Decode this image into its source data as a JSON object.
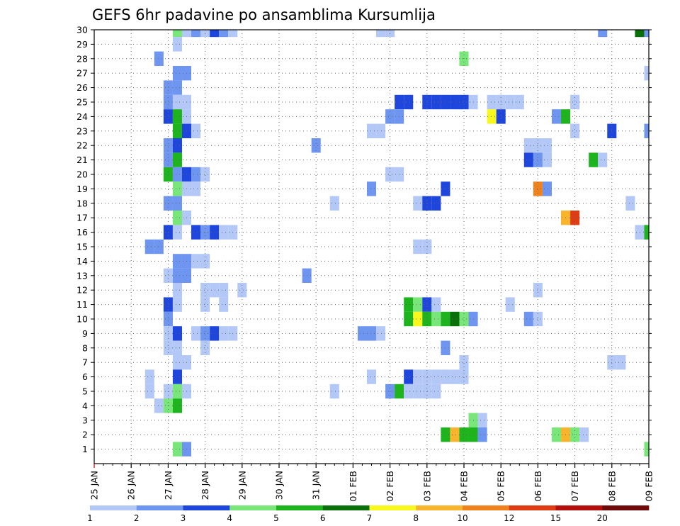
{
  "chart_data": {
    "type": "heatmap",
    "title": "GEFS 6hr padavine po ansamblima Kursumlija",
    "y_ticks": [
      "1",
      "2",
      "3",
      "4",
      "5",
      "6",
      "7",
      "8",
      "9",
      "10",
      "11",
      "12",
      "13",
      "14",
      "15",
      "16",
      "17",
      "18",
      "19",
      "20",
      "21",
      "22",
      "23",
      "24",
      "25",
      "26",
      "27",
      "28",
      "29",
      "30"
    ],
    "x_ticks": [
      "25 JAN",
      "26 JAN",
      "27 JAN",
      "28 JAN",
      "29 JAN",
      "30 JAN",
      "31 JAN",
      "01 FEB",
      "02 FEB",
      "03 FEB",
      "04 FEB",
      "05 FEB",
      "06 FEB",
      "07 FEB",
      "08 FEB",
      "09 FEB"
    ],
    "x_range": [
      "2023-01-25 00Z",
      "2023-02-09 00Z"
    ],
    "time_step_hours": 6,
    "y_range": [
      0,
      30
    ],
    "grid": "dotted",
    "colorbar": {
      "labels": [
        "1",
        "2",
        "3",
        "4",
        "5",
        "6",
        "7",
        "8",
        "10",
        "12",
        "15",
        "20"
      ],
      "colors": [
        "#b4c8f8",
        "#6e96f0",
        "#1e46dc",
        "#78e678",
        "#1eb41e",
        "#0a700a",
        "#f8f81e",
        "#f8b42d",
        "#f0821e",
        "#e03c14",
        "#b40f0f",
        "#6e0a0a"
      ]
    },
    "cells": [
      {
        "m": 30,
        "t": "01-27 06Z",
        "c": 4
      },
      {
        "m": 30,
        "t": "01-27 12Z",
        "c": 1
      },
      {
        "m": 30,
        "t": "01-27 18Z",
        "c": 2
      },
      {
        "m": 30,
        "t": "01-28 00Z",
        "c": 1
      },
      {
        "m": 30,
        "t": "01-28 06Z",
        "c": 3
      },
      {
        "m": 30,
        "t": "01-28 12Z",
        "c": 2
      },
      {
        "m": 30,
        "t": "01-28 18Z",
        "c": 1
      },
      {
        "m": 30,
        "t": "02-01 18Z",
        "c": 1
      },
      {
        "m": 30,
        "t": "02-02 00Z",
        "c": 1
      },
      {
        "m": 30,
        "t": "02-07 18Z",
        "c": 2
      },
      {
        "m": 30,
        "t": "02-08 18Z",
        "c": 6
      },
      {
        "m": 30,
        "t": "02-09 00Z",
        "c": 2
      },
      {
        "m": 29,
        "t": "01-27 06Z",
        "c": 1
      },
      {
        "m": 28,
        "t": "01-26 18Z",
        "c": 2
      },
      {
        "m": 28,
        "t": "02-04 00Z",
        "c": 4
      },
      {
        "m": 27,
        "t": "01-27 06Z",
        "c": 2
      },
      {
        "m": 27,
        "t": "01-27 12Z",
        "c": 2
      },
      {
        "m": 27,
        "t": "02-09 00Z",
        "c": 1
      },
      {
        "m": 26,
        "t": "01-27 00Z",
        "c": 2
      },
      {
        "m": 26,
        "t": "01-27 06Z",
        "c": 2
      },
      {
        "m": 25,
        "t": "01-27 00Z",
        "c": 2
      },
      {
        "m": 25,
        "t": "01-27 06Z",
        "c": 1
      },
      {
        "m": 25,
        "t": "01-27 12Z",
        "c": 1
      },
      {
        "m": 25,
        "t": "02-02 06Z",
        "c": 3
      },
      {
        "m": 25,
        "t": "02-02 12Z",
        "c": 3
      },
      {
        "m": 25,
        "t": "02-03 00Z",
        "c": 3
      },
      {
        "m": 25,
        "t": "02-03 06Z",
        "c": 3
      },
      {
        "m": 25,
        "t": "02-03 12Z",
        "c": 3
      },
      {
        "m": 25,
        "t": "02-03 18Z",
        "c": 3
      },
      {
        "m": 25,
        "t": "02-04 00Z",
        "c": 3
      },
      {
        "m": 25,
        "t": "02-04 06Z",
        "c": 1
      },
      {
        "m": 25,
        "t": "02-04 18Z",
        "c": 1
      },
      {
        "m": 25,
        "t": "02-05 00Z",
        "c": 1
      },
      {
        "m": 25,
        "t": "02-05 06Z",
        "c": 1
      },
      {
        "m": 25,
        "t": "02-05 12Z",
        "c": 1
      },
      {
        "m": 25,
        "t": "02-07 00Z",
        "c": 1
      },
      {
        "m": 24,
        "t": "01-27 00Z",
        "c": 3
      },
      {
        "m": 24,
        "t": "01-27 06Z",
        "c": 5
      },
      {
        "m": 24,
        "t": "01-27 12Z",
        "c": 1
      },
      {
        "m": 24,
        "t": "02-02 00Z",
        "c": 2
      },
      {
        "m": 24,
        "t": "02-02 06Z",
        "c": 2
      },
      {
        "m": 24,
        "t": "02-04 18Z",
        "c": 7
      },
      {
        "m": 24,
        "t": "02-05 00Z",
        "c": 3
      },
      {
        "m": 24,
        "t": "02-06 12Z",
        "c": 2
      },
      {
        "m": 24,
        "t": "02-06 18Z",
        "c": 5
      },
      {
        "m": 23,
        "t": "01-27 06Z",
        "c": 5
      },
      {
        "m": 23,
        "t": "01-27 12Z",
        "c": 3
      },
      {
        "m": 23,
        "t": "01-27 18Z",
        "c": 1
      },
      {
        "m": 23,
        "t": "02-01 12Z",
        "c": 1
      },
      {
        "m": 23,
        "t": "02-01 18Z",
        "c": 1
      },
      {
        "m": 23,
        "t": "02-07 00Z",
        "c": 1
      },
      {
        "m": 23,
        "t": "02-08 00Z",
        "c": 3
      },
      {
        "m": 23,
        "t": "02-09 00Z",
        "c": 2
      },
      {
        "m": 22,
        "t": "01-27 00Z",
        "c": 2
      },
      {
        "m": 22,
        "t": "01-27 06Z",
        "c": 3
      },
      {
        "m": 22,
        "t": "01-31 00Z",
        "c": 2
      },
      {
        "m": 22,
        "t": "02-05 18Z",
        "c": 1
      },
      {
        "m": 22,
        "t": "02-06 00Z",
        "c": 1
      },
      {
        "m": 22,
        "t": "02-06 06Z",
        "c": 1
      },
      {
        "m": 21,
        "t": "01-27 00Z",
        "c": 2
      },
      {
        "m": 21,
        "t": "01-27 06Z",
        "c": 5
      },
      {
        "m": 21,
        "t": "02-05 18Z",
        "c": 3
      },
      {
        "m": 21,
        "t": "02-06 00Z",
        "c": 2
      },
      {
        "m": 21,
        "t": "02-06 06Z",
        "c": 1
      },
      {
        "m": 21,
        "t": "02-07 12Z",
        "c": 5
      },
      {
        "m": 21,
        "t": "02-07 18Z",
        "c": 1
      },
      {
        "m": 20,
        "t": "01-27 00Z",
        "c": 5
      },
      {
        "m": 20,
        "t": "01-27 06Z",
        "c": 2
      },
      {
        "m": 20,
        "t": "01-27 12Z",
        "c": 3
      },
      {
        "m": 20,
        "t": "01-27 18Z",
        "c": 2
      },
      {
        "m": 20,
        "t": "01-28 00Z",
        "c": 1
      },
      {
        "m": 20,
        "t": "02-02 00Z",
        "c": 1
      },
      {
        "m": 20,
        "t": "02-02 06Z",
        "c": 1
      },
      {
        "m": 19,
        "t": "01-27 06Z",
        "c": 4
      },
      {
        "m": 19,
        "t": "01-27 12Z",
        "c": 1
      },
      {
        "m": 19,
        "t": "01-27 18Z",
        "c": 1
      },
      {
        "m": 19,
        "t": "02-01 12Z",
        "c": 2
      },
      {
        "m": 19,
        "t": "02-03 12Z",
        "c": 3
      },
      {
        "m": 19,
        "t": "02-06 00Z",
        "c": 9
      },
      {
        "m": 19,
        "t": "02-06 06Z",
        "c": 2
      },
      {
        "m": 18,
        "t": "01-27 00Z",
        "c": 2
      },
      {
        "m": 18,
        "t": "01-27 06Z",
        "c": 2
      },
      {
        "m": 18,
        "t": "01-31 12Z",
        "c": 1
      },
      {
        "m": 18,
        "t": "02-02 18Z",
        "c": 1
      },
      {
        "m": 18,
        "t": "02-03 00Z",
        "c": 3
      },
      {
        "m": 18,
        "t": "02-03 06Z",
        "c": 3
      },
      {
        "m": 18,
        "t": "02-08 12Z",
        "c": 1
      },
      {
        "m": 17,
        "t": "01-27 06Z",
        "c": 4
      },
      {
        "m": 17,
        "t": "01-27 12Z",
        "c": 1
      },
      {
        "m": 17,
        "t": "02-06 18Z",
        "c": 8
      },
      {
        "m": 17,
        "t": "02-07 00Z",
        "c": 10
      },
      {
        "m": 16,
        "t": "01-27 00Z",
        "c": 3
      },
      {
        "m": 16,
        "t": "01-27 06Z",
        "c": 1
      },
      {
        "m": 16,
        "t": "01-27 18Z",
        "c": 3
      },
      {
        "m": 16,
        "t": "01-28 00Z",
        "c": 2
      },
      {
        "m": 16,
        "t": "01-28 06Z",
        "c": 3
      },
      {
        "m": 16,
        "t": "01-28 12Z",
        "c": 1
      },
      {
        "m": 16,
        "t": "01-28 18Z",
        "c": 1
      },
      {
        "m": 16,
        "t": "02-08 18Z",
        "c": 1
      },
      {
        "m": 16,
        "t": "02-09 00Z",
        "c": 5
      },
      {
        "m": 15,
        "t": "01-26 12Z",
        "c": 2
      },
      {
        "m": 15,
        "t": "01-26 18Z",
        "c": 2
      },
      {
        "m": 15,
        "t": "02-02 18Z",
        "c": 1
      },
      {
        "m": 15,
        "t": "02-03 00Z",
        "c": 1
      },
      {
        "m": 14,
        "t": "01-27 06Z",
        "c": 2
      },
      {
        "m": 14,
        "t": "01-27 12Z",
        "c": 2
      },
      {
        "m": 14,
        "t": "01-27 18Z",
        "c": 1
      },
      {
        "m": 14,
        "t": "01-28 00Z",
        "c": 1
      },
      {
        "m": 13,
        "t": "01-27 00Z",
        "c": 1
      },
      {
        "m": 13,
        "t": "01-27 06Z",
        "c": 2
      },
      {
        "m": 13,
        "t": "01-27 12Z",
        "c": 2
      },
      {
        "m": 13,
        "t": "01-30 18Z",
        "c": 2
      },
      {
        "m": 12,
        "t": "01-27 06Z",
        "c": 1
      },
      {
        "m": 12,
        "t": "01-28 00Z",
        "c": 1
      },
      {
        "m": 12,
        "t": "01-28 06Z",
        "c": 1
      },
      {
        "m": 12,
        "t": "01-28 12Z",
        "c": 1
      },
      {
        "m": 12,
        "t": "01-29 00Z",
        "c": 1
      },
      {
        "m": 12,
        "t": "02-06 00Z",
        "c": 1
      },
      {
        "m": 11,
        "t": "01-27 00Z",
        "c": 3
      },
      {
        "m": 11,
        "t": "01-27 06Z",
        "c": 1
      },
      {
        "m": 11,
        "t": "01-28 00Z",
        "c": 1
      },
      {
        "m": 11,
        "t": "01-28 12Z",
        "c": 1
      },
      {
        "m": 11,
        "t": "02-02 12Z",
        "c": 5
      },
      {
        "m": 11,
        "t": "02-02 18Z",
        "c": 4
      },
      {
        "m": 11,
        "t": "02-03 00Z",
        "c": 3
      },
      {
        "m": 11,
        "t": "02-03 06Z",
        "c": 1
      },
      {
        "m": 11,
        "t": "02-05 06Z",
        "c": 1
      },
      {
        "m": 10,
        "t": "01-27 00Z",
        "c": 2
      },
      {
        "m": 10,
        "t": "02-02 12Z",
        "c": 5
      },
      {
        "m": 10,
        "t": "02-02 18Z",
        "c": 7
      },
      {
        "m": 10,
        "t": "02-03 00Z",
        "c": 5
      },
      {
        "m": 10,
        "t": "02-03 06Z",
        "c": 4
      },
      {
        "m": 10,
        "t": "02-03 12Z",
        "c": 5
      },
      {
        "m": 10,
        "t": "02-03 18Z",
        "c": 6
      },
      {
        "m": 10,
        "t": "02-04 00Z",
        "c": 4
      },
      {
        "m": 10,
        "t": "02-04 06Z",
        "c": 2
      },
      {
        "m": 10,
        "t": "02-05 18Z",
        "c": 2
      },
      {
        "m": 10,
        "t": "02-06 00Z",
        "c": 1
      },
      {
        "m": 9,
        "t": "01-27 00Z",
        "c": 1
      },
      {
        "m": 9,
        "t": "01-27 06Z",
        "c": 3
      },
      {
        "m": 9,
        "t": "01-27 18Z",
        "c": 1
      },
      {
        "m": 9,
        "t": "01-28 00Z",
        "c": 2
      },
      {
        "m": 9,
        "t": "01-28 06Z",
        "c": 3
      },
      {
        "m": 9,
        "t": "01-28 12Z",
        "c": 1
      },
      {
        "m": 9,
        "t": "01-28 18Z",
        "c": 1
      },
      {
        "m": 9,
        "t": "02-01 06Z",
        "c": 2
      },
      {
        "m": 9,
        "t": "02-01 12Z",
        "c": 2
      },
      {
        "m": 9,
        "t": "02-01 18Z",
        "c": 1
      },
      {
        "m": 8,
        "t": "01-27 00Z",
        "c": 1
      },
      {
        "m": 8,
        "t": "01-27 06Z",
        "c": 1
      },
      {
        "m": 8,
        "t": "01-28 00Z",
        "c": 1
      },
      {
        "m": 8,
        "t": "02-03 12Z",
        "c": 2
      },
      {
        "m": 7,
        "t": "01-27 06Z",
        "c": 1
      },
      {
        "m": 7,
        "t": "01-27 12Z",
        "c": 1
      },
      {
        "m": 7,
        "t": "02-04 00Z",
        "c": 1
      },
      {
        "m": 7,
        "t": "02-08 00Z",
        "c": 1
      },
      {
        "m": 7,
        "t": "02-08 06Z",
        "c": 1
      },
      {
        "m": 6,
        "t": "01-26 12Z",
        "c": 1
      },
      {
        "m": 6,
        "t": "01-27 06Z",
        "c": 3
      },
      {
        "m": 6,
        "t": "02-01 12Z",
        "c": 1
      },
      {
        "m": 6,
        "t": "02-02 12Z",
        "c": 3
      },
      {
        "m": 6,
        "t": "02-02 18Z",
        "c": 1
      },
      {
        "m": 6,
        "t": "02-03 00Z",
        "c": 1
      },
      {
        "m": 6,
        "t": "02-03 06Z",
        "c": 1
      },
      {
        "m": 6,
        "t": "02-03 12Z",
        "c": 1
      },
      {
        "m": 6,
        "t": "02-03 18Z",
        "c": 1
      },
      {
        "m": 6,
        "t": "02-04 00Z",
        "c": 1
      },
      {
        "m": 5,
        "t": "01-26 12Z",
        "c": 1
      },
      {
        "m": 5,
        "t": "01-27 00Z",
        "c": 1
      },
      {
        "m": 5,
        "t": "01-27 06Z",
        "c": 4
      },
      {
        "m": 5,
        "t": "01-27 12Z",
        "c": 1
      },
      {
        "m": 5,
        "t": "01-31 12Z",
        "c": 1
      },
      {
        "m": 5,
        "t": "02-02 00Z",
        "c": 2
      },
      {
        "m": 5,
        "t": "02-02 06Z",
        "c": 5
      },
      {
        "m": 5,
        "t": "02-02 12Z",
        "c": 1
      },
      {
        "m": 5,
        "t": "02-02 18Z",
        "c": 1
      },
      {
        "m": 5,
        "t": "02-03 00Z",
        "c": 1
      },
      {
        "m": 5,
        "t": "02-03 06Z",
        "c": 1
      },
      {
        "m": 4,
        "t": "01-26 18Z",
        "c": 1
      },
      {
        "m": 4,
        "t": "01-27 00Z",
        "c": 4
      },
      {
        "m": 4,
        "t": "01-27 06Z",
        "c": 5
      },
      {
        "m": 3,
        "t": "02-04 06Z",
        "c": 4
      },
      {
        "m": 3,
        "t": "02-04 12Z",
        "c": 1
      },
      {
        "m": 2,
        "t": "02-03 12Z",
        "c": 5
      },
      {
        "m": 2,
        "t": "02-03 18Z",
        "c": 8
      },
      {
        "m": 2,
        "t": "02-04 00Z",
        "c": 5
      },
      {
        "m": 2,
        "t": "02-04 06Z",
        "c": 5
      },
      {
        "m": 2,
        "t": "02-04 12Z",
        "c": 2
      },
      {
        "m": 2,
        "t": "02-06 12Z",
        "c": 4
      },
      {
        "m": 2,
        "t": "02-06 18Z",
        "c": 8
      },
      {
        "m": 2,
        "t": "02-07 00Z",
        "c": 4
      },
      {
        "m": 2,
        "t": "02-07 06Z",
        "c": 1
      },
      {
        "m": 1,
        "t": "01-27 06Z",
        "c": 4
      },
      {
        "m": 1,
        "t": "01-27 12Z",
        "c": 2
      },
      {
        "m": 1,
        "t": "02-09 00Z",
        "c": 4
      }
    ]
  }
}
